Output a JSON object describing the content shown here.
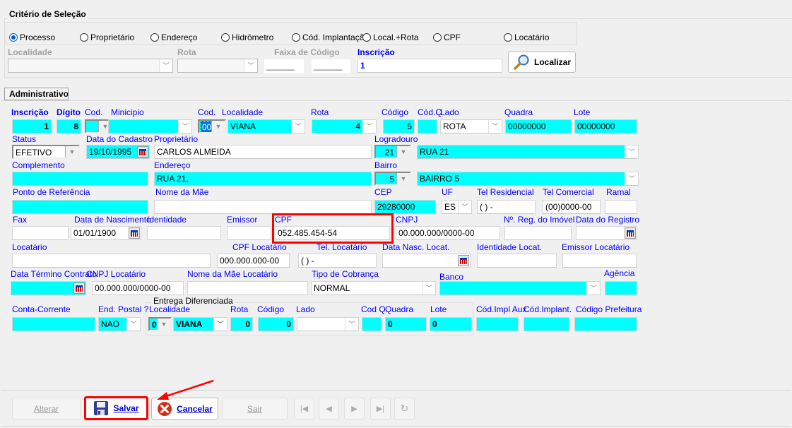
{
  "criteria": {
    "title": "Critério de Seleção",
    "radios": [
      {
        "label": "Processo",
        "checked": true
      },
      {
        "label": "Proprietário",
        "checked": false
      },
      {
        "label": "Endereço",
        "checked": false
      },
      {
        "label": "Hidrômetro",
        "checked": false
      },
      {
        "label": "Cód. Implantação",
        "checked": false
      },
      {
        "label": "Local.+Rota",
        "checked": false
      },
      {
        "label": "CPF",
        "checked": false
      },
      {
        "label": "Locatário",
        "checked": false
      }
    ],
    "localidade_label": "Localidade",
    "rota_label": "Rota",
    "faixa_label": "Faixa de Código",
    "faixa_from": "______",
    "faixa_to": "______",
    "inscricao_label": "Inscrição",
    "inscricao_value": "1",
    "localizar_label": "Localizar"
  },
  "tab": "Administrativo",
  "fields": {
    "inscricao": {
      "label": "Inscrição",
      "value": "1"
    },
    "digito": {
      "label": "Dígito",
      "value": "8"
    },
    "cod_municipio": {
      "label": "Cod.",
      "value": ""
    },
    "municipio": {
      "label": "Minicipio",
      "value": ""
    },
    "cod_localidade": {
      "label": "Cod.",
      "value": "00"
    },
    "localidade": {
      "label": "Localidade",
      "value": "VIANA"
    },
    "rota": {
      "label": "Rota",
      "value": "4"
    },
    "codigo": {
      "label": "Código",
      "value": "5"
    },
    "codq": {
      "label": "Cód.Q",
      "value": ""
    },
    "lado": {
      "label": "Lado",
      "value": "ROTA"
    },
    "quadra": {
      "label": "Quadra",
      "value": "00000000"
    },
    "lote": {
      "label": "Lote",
      "value": "00000000"
    },
    "status": {
      "label": "Status",
      "value": "EFETIVO"
    },
    "data_cadastro": {
      "label": "Data do Cadastro",
      "value": "19/10/1995"
    },
    "proprietario": {
      "label": "Proprietário",
      "value": "CARLOS ALMEIDA"
    },
    "logradouro_cod": {
      "label": "Logradouro",
      "value": "21"
    },
    "logradouro": {
      "value": "RUA 21"
    },
    "complemento": {
      "label": "Complemento",
      "value": ""
    },
    "endereco": {
      "label": "Endereço",
      "value": "RUA 21,"
    },
    "bairro_cod": {
      "label": "Bairro",
      "value": "5"
    },
    "bairro": {
      "value": "BAIRRO 5"
    },
    "ponto_referencia": {
      "label": "Ponto de Referência",
      "value": ""
    },
    "nome_mae": {
      "label": "Nome da Mãe",
      "value": ""
    },
    "cep": {
      "label": "CEP",
      "value": "29280000"
    },
    "uf": {
      "label": "UF",
      "value": "ES"
    },
    "tel_residencial": {
      "label": "Tel Residencial",
      "value": "(  )    -"
    },
    "tel_comercial": {
      "label": "Tel Comercial",
      "value": "(00)0000-00"
    },
    "ramal": {
      "label": "Ramal",
      "value": ""
    },
    "fax": {
      "label": "Fax",
      "value": ""
    },
    "data_nascimento": {
      "label": "Data de Nascimento",
      "value": "01/01/1900"
    },
    "identidade": {
      "label": "Identidade",
      "value": ""
    },
    "emissor": {
      "label": "Emissor",
      "value": ""
    },
    "cpf": {
      "label": "CPF",
      "value": "052.485.454-54"
    },
    "cnpj": {
      "label": "CNPJ",
      "value": "00.000.000/0000-00"
    },
    "reg_imovel": {
      "label": "Nº. Reg. do Imóvel",
      "value": ""
    },
    "data_registro": {
      "label": "Data do Registro",
      "value": ""
    },
    "locatario": {
      "label": "Locatário",
      "value": ""
    },
    "cpf_locatario": {
      "label": "CPF Locatário",
      "value": "000.000.000-00"
    },
    "tel_locatario": {
      "label": "Tel. Locatário",
      "value": "(  )    -"
    },
    "data_nasc_locat": {
      "label": "Data Nasc. Locat.",
      "value": ""
    },
    "identidade_locat": {
      "label": "Identidade Locat.",
      "value": ""
    },
    "emissor_locatario": {
      "label": "Emissor Locatário",
      "value": ""
    },
    "data_termino_contrato": {
      "label": "Data Término Contrato",
      "value": ""
    },
    "cnpj_locatario": {
      "label": "CNPJ Locatário",
      "value": "00.000.000/0000-00"
    },
    "nome_mae_locatario": {
      "label": "Nome da Mãe Locatário",
      "value": ""
    },
    "tipo_cobranca": {
      "label": "Tipo de Cobrança",
      "value": "NORMAL"
    },
    "banco": {
      "label": "Banco",
      "value": ""
    },
    "agencia": {
      "label": "Agência",
      "value": ""
    },
    "conta_corrente": {
      "label": "Conta-Corrente",
      "value": ""
    },
    "end_postal": {
      "label": "End. Postal ?",
      "value": "NAO"
    },
    "ent_localidade_cod": {
      "label": "Localidade",
      "value": "00"
    },
    "ent_localidade": {
      "value": "VIANA"
    },
    "ent_rota": {
      "label": "Rota",
      "value": "0"
    },
    "ent_codigo": {
      "label": "Código",
      "value": "0"
    },
    "ent_lado": {
      "label": "Lado",
      "value": ""
    },
    "ent_codq": {
      "label": "Cod Q",
      "value": ""
    },
    "ent_quadra": {
      "label": "Quadra",
      "value": "0"
    },
    "ent_lote": {
      "label": "Lote",
      "value": "0"
    },
    "cod_impl_aux": {
      "label": "Cód.Impl Aux.",
      "value": ""
    },
    "cod_implant": {
      "label": "Cód.Implant.",
      "value": ""
    },
    "codigo_prefeitura": {
      "label": "Código Prefeitura",
      "value": ""
    }
  },
  "entrega_title": "Entrega Diferenciada",
  "buttons": {
    "alterar": {
      "label": "Alterar",
      "enabled": false
    },
    "salvar": {
      "label": "Salvar",
      "enabled": true
    },
    "cancelar": {
      "label": "Cancelar",
      "enabled": true
    },
    "sair": {
      "label": "Sair",
      "enabled": false
    }
  },
  "nav_icons": [
    "first-record-icon",
    "previous-record-icon",
    "next-record-icon",
    "last-record-icon",
    "refresh-icon"
  ],
  "annotation": {
    "highlight_color": "#ff0000",
    "highlighted": [
      "cpf",
      "salvar"
    ]
  },
  "colors": {
    "required_field": "#00ffff",
    "label": "#0000ff"
  }
}
